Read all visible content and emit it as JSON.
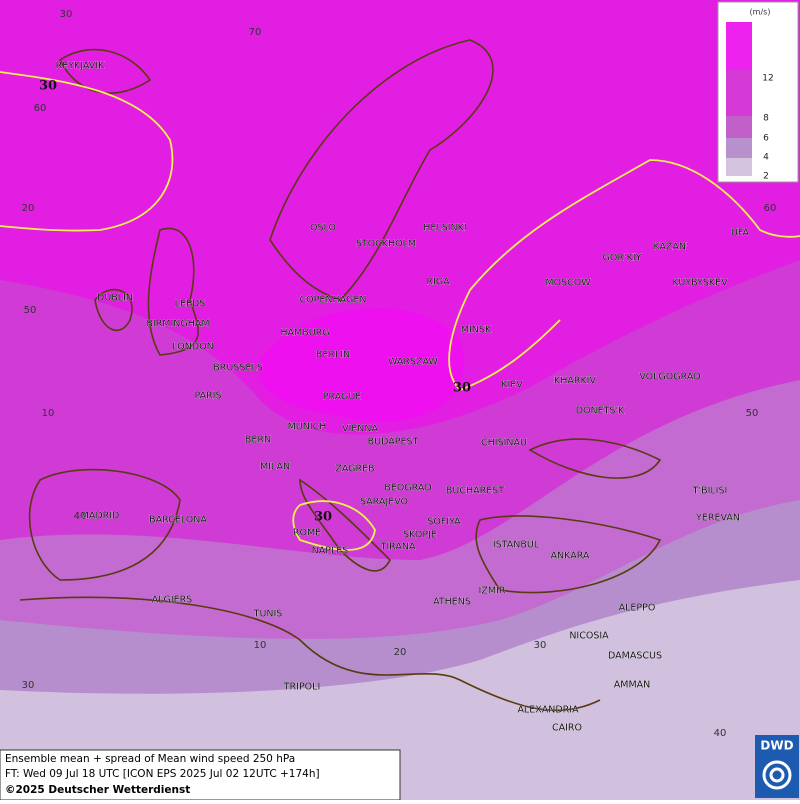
{
  "legend": {
    "unit": "(m/s)",
    "levels": [
      12,
      8,
      6,
      4,
      2
    ]
  },
  "graticule_labels": [
    30,
    70,
    60,
    20,
    50,
    10,
    40,
    30,
    10,
    20,
    30,
    40,
    50,
    60
  ],
  "contour_labels": [
    30,
    30,
    30
  ],
  "cities": [
    "REYKJAVIK",
    "OSLO",
    "STOCKHOLM",
    "HELSINKI",
    "RIGA",
    "DUBLIN",
    "LEEDS",
    "COPENHAGEN",
    "BIRMINGHAM",
    "HAMBURG",
    "MINSK",
    "MOSCOW",
    "GOR'KIY",
    "KAZAN'",
    "UFA",
    "KUYBYSKEV",
    "LONDON",
    "BERLIN",
    "WARSZAW",
    "BRUSSELS",
    "KIEV",
    "KHARKIV",
    "VOLGOGRAD",
    "PARIS",
    "PRAGUE",
    "DONETS'K",
    "MUNICH",
    "VIENNA",
    "BERN",
    "BUDAPEST",
    "CHISINAU",
    "MILAN",
    "ZAGREB",
    "BEOGRAD",
    "BUCHAREST",
    "T'BILISI",
    "MADRID",
    "BARCELONA",
    "SARAJEVO",
    "SOFIYA",
    "YEREVAN",
    "ROME",
    "SKOPJE",
    "NAPLES",
    "TIRANA",
    "ISTANBUL",
    "ANKARA",
    "IZMIR",
    "ALGIERS",
    "ATHENS",
    "ALEPPO",
    "TUNIS",
    "NICOSIA",
    "DAMASCUS",
    "AMMAN",
    "TRIPOLI",
    "ALEXANDRIA",
    "CAIRO"
  ],
  "footer": {
    "line1": "Ensemble mean + spread of Mean wind speed 250 hPa",
    "line2": "FT: Wed 09 Jul 18 UTC [ICON EPS 2025 Jul 02 12UTC +174h]",
    "line3": "©2025 Deutscher Wetterdienst"
  },
  "logo": "DWD"
}
